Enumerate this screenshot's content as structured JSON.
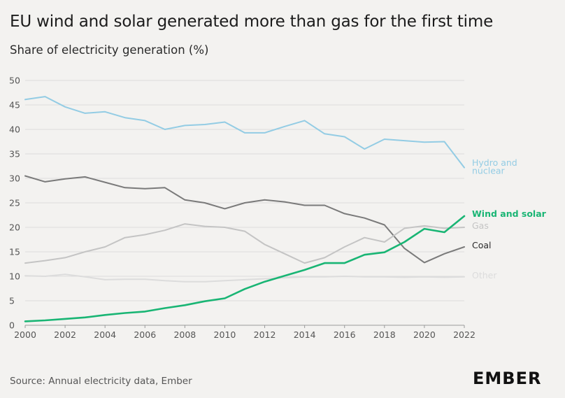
{
  "title": "EU wind and solar generated more than gas for the first time",
  "subtitle": "Share of electricity generation (%)",
  "source": "Source: Annual electricity data, Ember",
  "logo_text": "EMBER",
  "chart_data": {
    "type": "line",
    "xlabel": "",
    "ylabel": "",
    "ylim": [
      0,
      50
    ],
    "xlim": [
      2000,
      2022
    ],
    "yticks": [
      0,
      5,
      10,
      15,
      20,
      25,
      30,
      35,
      40,
      45,
      50
    ],
    "xticks": [
      2000,
      2002,
      2004,
      2006,
      2008,
      2010,
      2012,
      2014,
      2016,
      2018,
      2020,
      2022
    ],
    "grid": true,
    "x": [
      2000,
      2001,
      2002,
      2003,
      2004,
      2005,
      2006,
      2007,
      2008,
      2009,
      2010,
      2011,
      2012,
      2013,
      2014,
      2015,
      2016,
      2017,
      2018,
      2019,
      2020,
      2021,
      2022
    ],
    "series": [
      {
        "name": "Hydro and nuclear",
        "label_lines": [
          "Hydro and",
          "nuclear"
        ],
        "color": "#93cce4",
        "values": [
          46.1,
          46.7,
          44.6,
          43.3,
          43.6,
          42.4,
          41.8,
          40.0,
          40.8,
          41.0,
          41.5,
          39.3,
          39.3,
          40.6,
          41.8,
          39.1,
          38.5,
          36.0,
          38.0,
          37.7,
          37.4,
          37.5,
          32.2
        ]
      },
      {
        "name": "Coal",
        "label_lines": [
          "Coal"
        ],
        "color": "#7a7a7a",
        "values": [
          30.5,
          29.3,
          29.9,
          30.3,
          29.2,
          28.1,
          27.9,
          28.1,
          25.6,
          25.0,
          23.8,
          25.0,
          25.6,
          25.2,
          24.5,
          24.5,
          22.8,
          21.9,
          20.5,
          15.7,
          12.8,
          14.6,
          16.0
        ]
      },
      {
        "name": "Gas",
        "label_lines": [
          "Gas"
        ],
        "color": "#c4c4c4",
        "values": [
          12.7,
          13.2,
          13.8,
          15.0,
          16.0,
          17.9,
          18.5,
          19.4,
          20.7,
          20.2,
          20.0,
          19.2,
          16.5,
          14.6,
          12.7,
          13.8,
          16.0,
          17.9,
          17.0,
          19.8,
          20.3,
          19.8,
          20.0
        ]
      },
      {
        "name": "Other",
        "label_lines": [
          "Other"
        ],
        "color": "#dcdcdc",
        "values": [
          10.1,
          10.0,
          10.4,
          9.9,
          9.3,
          9.4,
          9.4,
          9.1,
          8.9,
          8.9,
          9.1,
          9.3,
          9.5,
          9.7,
          9.9,
          9.9,
          10.0,
          9.9,
          9.9,
          9.8,
          9.9,
          9.8,
          9.9
        ]
      },
      {
        "name": "Wind and solar",
        "label_lines": [
          "Wind and solar"
        ],
        "color": "#19b574",
        "bold": true,
        "values": [
          0.8,
          1.0,
          1.3,
          1.6,
          2.1,
          2.5,
          2.8,
          3.5,
          4.1,
          4.9,
          5.5,
          7.4,
          8.9,
          10.1,
          11.3,
          12.7,
          12.7,
          14.4,
          14.9,
          17.0,
          19.7,
          19.0,
          22.3
        ]
      }
    ]
  }
}
